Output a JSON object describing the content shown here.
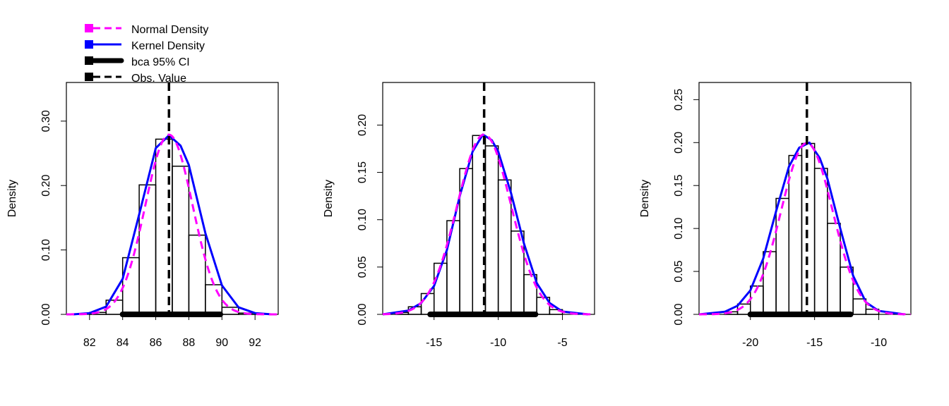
{
  "legend": {
    "placement": "top-left",
    "entries": [
      {
        "label": "Normal Density",
        "color": "#ff00ff",
        "style": "dashed"
      },
      {
        "label": "Kernel Density",
        "color": "#0000ff",
        "style": "solid"
      },
      {
        "label": "bca 95% CI",
        "color": "#000000",
        "style": "thick"
      },
      {
        "label": "Obs. Value",
        "color": "#000000",
        "style": "dashed"
      }
    ]
  },
  "colors": {
    "normal": "#ff00ff",
    "kernel": "#0000ff",
    "ci": "#000000",
    "obs": "#000000"
  },
  "chart_data": [
    {
      "type": "bar",
      "subtype": "histogram-with-density",
      "title": "",
      "xlabel": "",
      "ylabel": "Density",
      "xlim": [
        80.6,
        93.4
      ],
      "ylim": [
        0,
        0.36
      ],
      "xticks": [
        82,
        84,
        86,
        88,
        90,
        92
      ],
      "yticks": [
        0.0,
        0.1,
        0.2,
        0.3
      ],
      "ytick_labels": [
        "0.00",
        "0.10",
        "0.20",
        "0.30"
      ],
      "bins": [
        {
          "x0": 82,
          "x1": 83,
          "density": 0.003
        },
        {
          "x0": 83,
          "x1": 84,
          "density": 0.022
        },
        {
          "x0": 84,
          "x1": 85,
          "density": 0.088
        },
        {
          "x0": 85,
          "x1": 86,
          "density": 0.201
        },
        {
          "x0": 86,
          "x1": 87,
          "density": 0.272
        },
        {
          "x0": 87,
          "x1": 88,
          "density": 0.23
        },
        {
          "x0": 88,
          "x1": 89,
          "density": 0.123
        },
        {
          "x0": 89,
          "x1": 90,
          "density": 0.046
        },
        {
          "x0": 90,
          "x1": 91,
          "density": 0.011
        },
        {
          "x0": 91,
          "x1": 92,
          "density": 0.002
        }
      ],
      "normal": {
        "mean": 86.8,
        "sd": 1.43
      },
      "kernel_curve": [
        [
          81,
          0.0
        ],
        [
          82,
          0.002
        ],
        [
          83,
          0.012
        ],
        [
          84,
          0.055
        ],
        [
          85,
          0.155
        ],
        [
          86,
          0.258
        ],
        [
          86.8,
          0.278
        ],
        [
          87.5,
          0.262
        ],
        [
          88,
          0.232
        ],
        [
          89,
          0.126
        ],
        [
          90,
          0.045
        ],
        [
          91,
          0.011
        ],
        [
          92,
          0.002
        ],
        [
          93,
          0.0
        ]
      ],
      "ci": [
        84.0,
        89.9
      ],
      "obs": 86.8,
      "grid": false
    },
    {
      "type": "bar",
      "subtype": "histogram-with-density",
      "title": "",
      "xlabel": "",
      "ylabel": "Density",
      "xlim": [
        -19.0,
        -2.5
      ],
      "ylim": [
        0,
        0.245
      ],
      "xticks": [
        -15,
        -10,
        -5
      ],
      "yticks": [
        0.0,
        0.05,
        0.1,
        0.15,
        0.2
      ],
      "ytick_labels": [
        "0.00",
        "0.05",
        "0.10",
        "0.15",
        "0.20"
      ],
      "bins": [
        {
          "x0": -18,
          "x1": -17,
          "density": 0.002
        },
        {
          "x0": -17,
          "x1": -16,
          "density": 0.008
        },
        {
          "x0": -16,
          "x1": -15,
          "density": 0.022
        },
        {
          "x0": -15,
          "x1": -14,
          "density": 0.054
        },
        {
          "x0": -14,
          "x1": -13,
          "density": 0.099
        },
        {
          "x0": -13,
          "x1": -12,
          "density": 0.154
        },
        {
          "x0": -12,
          "x1": -11,
          "density": 0.189
        },
        {
          "x0": -11,
          "x1": -10,
          "density": 0.178
        },
        {
          "x0": -10,
          "x1": -9,
          "density": 0.142
        },
        {
          "x0": -9,
          "x1": -8,
          "density": 0.088
        },
        {
          "x0": -8,
          "x1": -7,
          "density": 0.042
        },
        {
          "x0": -7,
          "x1": -6,
          "density": 0.018
        },
        {
          "x0": -6,
          "x1": -5,
          "density": 0.005
        }
      ],
      "normal": {
        "mean": -11.1,
        "sd": 2.1
      },
      "kernel_curve": [
        [
          -19,
          0.0
        ],
        [
          -17,
          0.004
        ],
        [
          -16,
          0.012
        ],
        [
          -15,
          0.03
        ],
        [
          -14,
          0.068
        ],
        [
          -13,
          0.125
        ],
        [
          -12,
          0.172
        ],
        [
          -11.2,
          0.19
        ],
        [
          -10.5,
          0.184
        ],
        [
          -10,
          0.172
        ],
        [
          -9,
          0.128
        ],
        [
          -8,
          0.075
        ],
        [
          -7,
          0.033
        ],
        [
          -6,
          0.012
        ],
        [
          -5,
          0.003
        ],
        [
          -3,
          0.0
        ]
      ],
      "ci": [
        -15.3,
        -7.1
      ],
      "obs": -11.1,
      "grid": false
    },
    {
      "type": "bar",
      "subtype": "histogram-with-density",
      "title": "",
      "xlabel": "",
      "ylabel": "Density",
      "xlim": [
        -24.0,
        -7.5
      ],
      "ylim": [
        0,
        0.27
      ],
      "xticks": [
        -20,
        -15,
        -10
      ],
      "yticks": [
        0.0,
        0.05,
        0.1,
        0.15,
        0.2,
        0.25
      ],
      "ytick_labels": [
        "0.00",
        "0.05",
        "0.10",
        "0.15",
        "0.20",
        "0.25"
      ],
      "bins": [
        {
          "x0": -22,
          "x1": -21,
          "density": 0.003
        },
        {
          "x0": -21,
          "x1": -20,
          "density": 0.012
        },
        {
          "x0": -20,
          "x1": -19,
          "density": 0.033
        },
        {
          "x0": -19,
          "x1": -18,
          "density": 0.073
        },
        {
          "x0": -18,
          "x1": -17,
          "density": 0.135
        },
        {
          "x0": -17,
          "x1": -16,
          "density": 0.185
        },
        {
          "x0": -16,
          "x1": -15,
          "density": 0.199
        },
        {
          "x0": -15,
          "x1": -14,
          "density": 0.17
        },
        {
          "x0": -14,
          "x1": -13,
          "density": 0.106
        },
        {
          "x0": -13,
          "x1": -12,
          "density": 0.055
        },
        {
          "x0": -12,
          "x1": -11,
          "density": 0.018
        },
        {
          "x0": -11,
          "x1": -10,
          "density": 0.006
        }
      ],
      "normal": {
        "mean": -15.6,
        "sd": 2.0
      },
      "kernel_curve": [
        [
          -24,
          0.0
        ],
        [
          -22,
          0.003
        ],
        [
          -21,
          0.01
        ],
        [
          -20,
          0.028
        ],
        [
          -19,
          0.065
        ],
        [
          -18,
          0.12
        ],
        [
          -17,
          0.172
        ],
        [
          -16.2,
          0.194
        ],
        [
          -15.4,
          0.2
        ],
        [
          -14.6,
          0.182
        ],
        [
          -14,
          0.158
        ],
        [
          -13,
          0.1
        ],
        [
          -12,
          0.045
        ],
        [
          -11,
          0.014
        ],
        [
          -10,
          0.004
        ],
        [
          -8,
          0.0
        ]
      ],
      "ci": [
        -20.0,
        -12.2
      ],
      "obs": -15.6,
      "grid": false
    }
  ]
}
